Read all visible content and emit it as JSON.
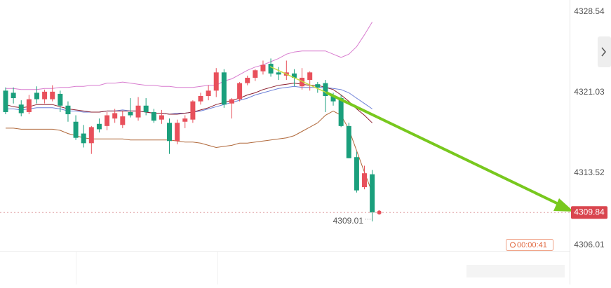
{
  "chart_data": {
    "type": "candlestick",
    "ylim": [
      4306.0,
      4329.65
    ],
    "yticks": [
      4328.54,
      4321.03,
      4313.52,
      4306.01
    ],
    "grid": false,
    "up_color": "#e8505b",
    "down_color": "#1a9f7c",
    "ohlc": {
      "open": [
        4321.2,
        4321.0,
        4319.9,
        4319.2,
        4321.0,
        4320.4,
        4320.4,
        4320.9,
        4319.8,
        4318.3,
        4317.2,
        4316.3,
        4318.1,
        4317.9,
        4318.6,
        4318.0,
        4319.2,
        4318.7,
        4319.8,
        4319.2,
        4318.5,
        4318.2,
        4316.5,
        4318.3,
        4318.5,
        4320.2,
        4320.7,
        4321.2,
        4322.9,
        4320.0,
        4320.4,
        4321.9,
        4322.4,
        4323.0,
        4323.7,
        4322.9,
        4322.6,
        4322.8,
        4321.6,
        4322.2,
        4321.8,
        4321.9,
        4320.7,
        4320.5,
        4317.9,
        4315.0,
        4312.2,
        4313.4
      ],
      "high": [
        4321.5,
        4321.5,
        4320.3,
        4320.8,
        4321.6,
        4321.3,
        4321.7,
        4321.2,
        4320.2,
        4318.9,
        4318.0,
        4317.9,
        4318.6,
        4319.2,
        4319.5,
        4319.3,
        4320.5,
        4320.6,
        4320.5,
        4319.5,
        4319.4,
        4318.6,
        4318.5,
        4318.9,
        4320.3,
        4321.0,
        4321.7,
        4323.3,
        4323.2,
        4320.5,
        4322.0,
        4322.6,
        4323.2,
        4324.0,
        4324.2,
        4323.4,
        4324.0,
        4323.2,
        4323.3,
        4323.0,
        4322.0,
        4322.2,
        4321.0,
        4320.8,
        4318.2,
        4315.5,
        4314.2,
        4313.8
      ],
      "low": [
        4319.0,
        4320.0,
        4318.8,
        4319.0,
        4320.0,
        4320.0,
        4320.2,
        4319.2,
        4318.3,
        4316.6,
        4315.9,
        4315.3,
        4317.3,
        4317.5,
        4318.2,
        4317.7,
        4318.7,
        4318.4,
        4318.9,
        4318.2,
        4318.1,
        4315.3,
        4316.2,
        4317.7,
        4318.2,
        4319.9,
        4320.3,
        4320.6,
        4319.6,
        4318.6,
        4320.2,
        4321.7,
        4322.1,
        4322.7,
        4322.5,
        4322.2,
        4322.2,
        4321.6,
        4321.3,
        4321.2,
        4321.0,
        4319.2,
        4319.8,
        4317.8,
        4314.9,
        4311.7,
        4312.0,
        4309.01
      ],
      "close": [
        4319.2,
        4320.5,
        4319.1,
        4320.4,
        4320.4,
        4321.1,
        4321.1,
        4319.8,
        4319.0,
        4316.8,
        4316.3,
        4317.8,
        4317.6,
        4318.9,
        4319.1,
        4318.8,
        4318.9,
        4319.8,
        4319.2,
        4318.4,
        4318.9,
        4316.5,
        4318.2,
        4318.6,
        4320.2,
        4320.7,
        4321.2,
        4322.9,
        4319.9,
        4320.4,
        4321.9,
        4322.4,
        4323.1,
        4323.6,
        4322.8,
        4322.7,
        4322.9,
        4322.4,
        4322.4,
        4322.9,
        4321.5,
        4320.7,
        4320.2,
        4317.9,
        4314.9,
        4311.9,
        4313.5,
        4309.84
      ]
    },
    "lines": [
      {
        "color": "#d87ccf",
        "values": [
          4321.4,
          4321.4,
          4321.3,
          4321.3,
          4321.3,
          4321.4,
          4321.4,
          4321.5,
          4321.5,
          4321.6,
          4321.6,
          4321.7,
          4321.7,
          4321.9,
          4321.9,
          4322.0,
          4321.9,
          4321.8,
          4321.7,
          4321.7,
          4321.6,
          4321.6,
          4321.5,
          4321.5,
          4321.5,
          4321.6,
          4321.7,
          4321.7,
          4322.1,
          4322.3,
          4322.7,
          4323.1,
          4323.4,
          4323.6,
          4323.9,
          4324.2,
          4324.6,
          4324.8,
          4324.9,
          4324.9,
          4324.9,
          4324.9,
          4324.6,
          4324.3,
          4324.6,
          4325.3,
          4326.4,
          4327.6
        ]
      },
      {
        "color": "#6b7fd7",
        "values": [
          4319.5,
          4319.5,
          4319.4,
          4319.5,
          4319.6,
          4319.6,
          4319.6,
          4319.5,
          4319.3,
          4319.3,
          4319.2,
          4319.2,
          4319.2,
          4319.3,
          4319.3,
          4319.4,
          4319.3,
          4319.3,
          4319.2,
          4319.1,
          4319.1,
          4319.0,
          4319.1,
          4319.1,
          4319.2,
          4319.3,
          4319.5,
          4319.7,
          4319.9,
          4320.1,
          4320.3,
          4320.5,
          4320.8,
          4321.0,
          4321.2,
          4321.4,
          4321.5,
          4321.6,
          4321.5,
          4321.5,
          4321.5,
          4321.5,
          4321.4,
          4321.3,
          4321.0,
          4320.5,
          4320.0,
          4319.5
        ]
      },
      {
        "color": "#8b1e2e",
        "values": [
          4319.9,
          4319.7,
          4319.6,
          4319.7,
          4319.9,
          4319.9,
          4319.9,
          4319.7,
          4319.5,
          4319.4,
          4319.3,
          4319.2,
          4319.2,
          4319.3,
          4319.3,
          4319.3,
          4319.3,
          4319.3,
          4319.2,
          4319.1,
          4319.1,
          4319.0,
          4319.0,
          4319.1,
          4319.2,
          4319.4,
          4319.6,
          4319.9,
          4320.1,
          4320.3,
          4320.5,
          4320.8,
          4321.0,
          4321.3,
          4321.5,
          4321.7,
          4321.8,
          4321.9,
          4321.8,
          4321.7,
          4321.7,
          4321.5,
          4321.3,
          4320.8,
          4320.2,
          4319.5,
          4318.9,
          4318.2
        ]
      },
      {
        "color": "#b0683a",
        "values": [
          4317.7,
          4317.7,
          4317.6,
          4317.6,
          4317.6,
          4317.6,
          4317.6,
          4317.5,
          4317.2,
          4317.0,
          4316.8,
          4316.7,
          4316.7,
          4316.7,
          4316.7,
          4316.7,
          4316.6,
          4316.6,
          4316.6,
          4316.6,
          4316.6,
          4316.6,
          4316.5,
          4316.4,
          4316.4,
          4316.3,
          4316.1,
          4315.9,
          4316.0,
          4316.1,
          4316.3,
          4316.3,
          4316.4,
          4316.5,
          4316.6,
          4316.7,
          4316.8,
          4317.0,
          4317.4,
          4317.8,
          4318.2,
          4318.9,
          4319.3,
          4318.9,
          4317.6,
          4315.6,
          4313.6,
          4311.7
        ]
      }
    ],
    "countdown": "00:00:41"
  }
}
